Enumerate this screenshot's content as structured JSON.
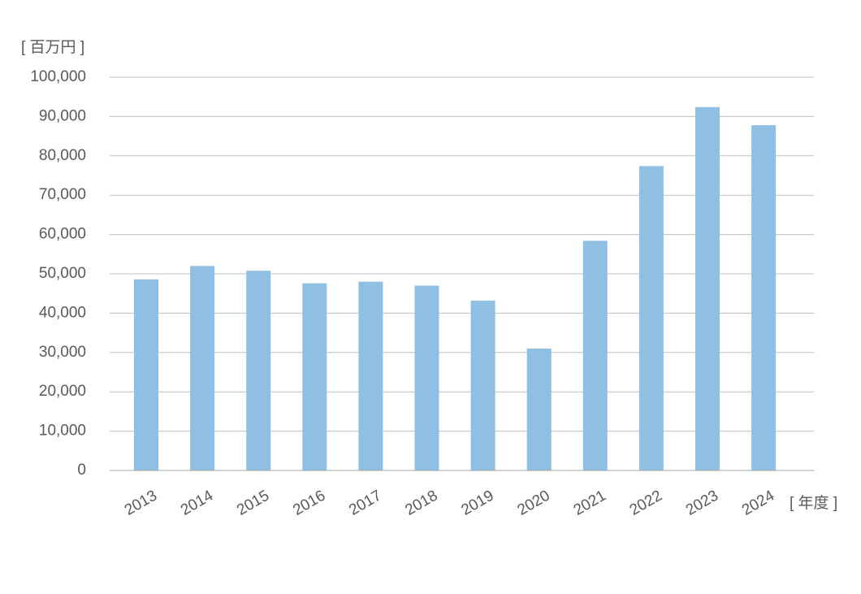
{
  "chart_data": {
    "type": "bar",
    "y_unit": "[ 百万円 ]",
    "x_unit": "[ 年度 ]",
    "categories": [
      "2013",
      "2014",
      "2015",
      "2016",
      "2017",
      "2018",
      "2019",
      "2020",
      "2021",
      "2022",
      "2023",
      "2024"
    ],
    "values": [
      48600,
      52000,
      50800,
      47600,
      48000,
      47000,
      43200,
      31000,
      58400,
      77400,
      92400,
      87800
    ],
    "color": "#8fbfe3",
    "ylim": [
      0,
      100000
    ],
    "yticks": [
      0,
      {
        "value": 10000,
        "label": "10,000"
      },
      {
        "value": 20000,
        "label": "20,000"
      },
      {
        "value": 30000,
        "label": "30,000"
      },
      {
        "value": 40000,
        "label": "40,000"
      },
      {
        "value": 50000,
        "label": "50,000"
      },
      {
        "value": 60000,
        "label": "60,000"
      },
      {
        "value": 70000,
        "label": "70,000"
      },
      {
        "value": 80000,
        "label": "80,000"
      },
      {
        "value": 90000,
        "label": "90,000"
      },
      {
        "value": 100000,
        "label": "100,000"
      }
    ],
    "grid": true
  }
}
